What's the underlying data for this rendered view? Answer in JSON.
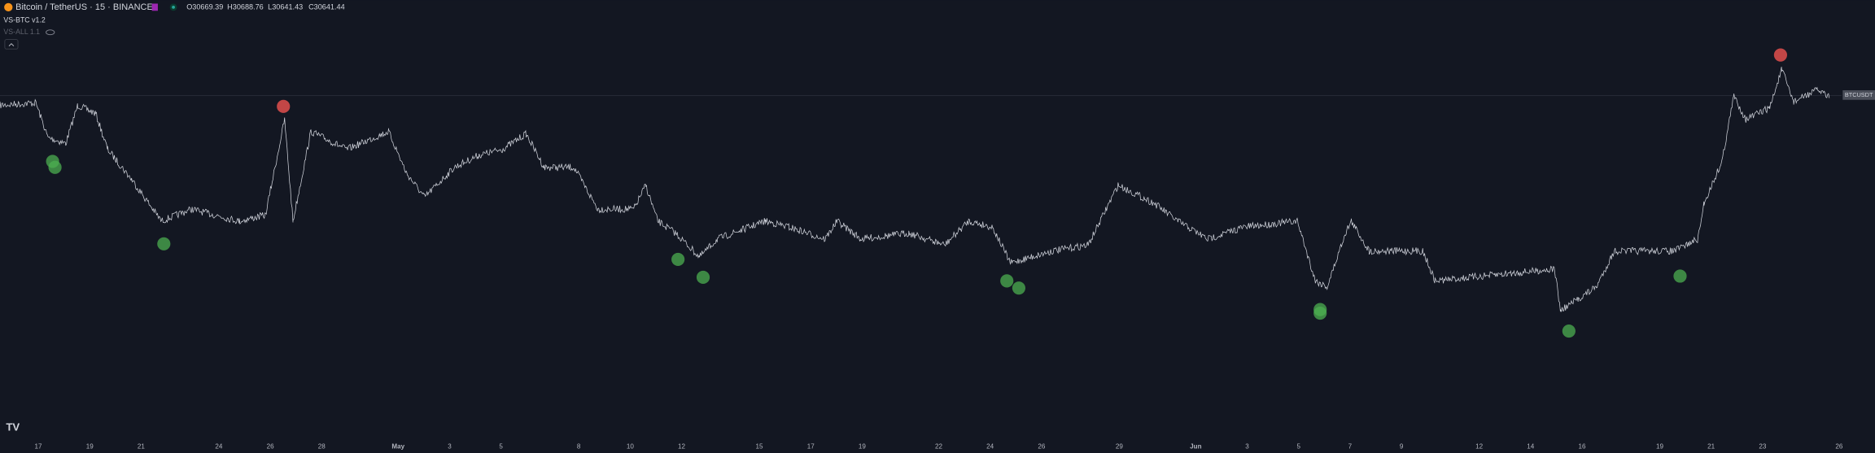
{
  "header": {
    "symbol": "Bitcoin / TetherUS · 15 · BINANCE",
    "ohlc": [
      "O30669.39",
      "H30688.76",
      "L30641.43",
      "C30641.44"
    ]
  },
  "indicators": [
    "VS-BTC v1.2",
    "VS-ALL 1.1"
  ],
  "price_label": "BTCUSDT",
  "x_axis": [
    "17",
    "19",
    "21",
    "24",
    "26",
    "28",
    "May",
    "3",
    "5",
    "8",
    "10",
    "12",
    "15",
    "17",
    "19",
    "22",
    "24",
    "26",
    "29",
    "Jun",
    "3",
    "5",
    "7",
    "9",
    "12",
    "14",
    "16",
    "19",
    "21",
    "23",
    "26"
  ]
}
